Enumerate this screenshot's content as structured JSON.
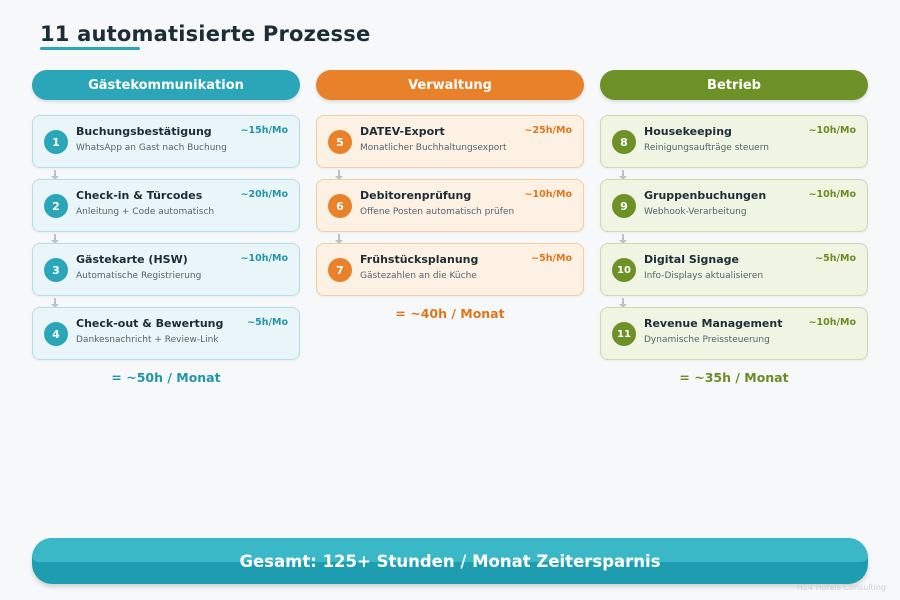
{
  "title": "11 automatisierte Prozesse",
  "colors": {
    "teal": "#2aa6b8",
    "orange": "#e8812a",
    "green": "#6e9127"
  },
  "columns": [
    {
      "header": "Gästekommunikation",
      "theme": "teal",
      "total": "= ~50h / Monat",
      "items": [
        {
          "num": "1",
          "title": "Buchungsbestätigung",
          "desc": "WhatsApp an Gast nach Buchung",
          "hours": "~15h/Mo"
        },
        {
          "num": "2",
          "title": "Check-in & Türcodes",
          "desc": "Anleitung + Code automatisch",
          "hours": "~20h/Mo"
        },
        {
          "num": "3",
          "title": "Gästekarte (HSW)",
          "desc": "Automatische Registrierung",
          "hours": "~10h/Mo"
        },
        {
          "num": "4",
          "title": "Check-out & Bewertung",
          "desc": "Dankesnachricht + Review-Link",
          "hours": "~5h/Mo"
        }
      ]
    },
    {
      "header": "Verwaltung",
      "theme": "orange",
      "total": "= ~40h / Monat",
      "items": [
        {
          "num": "5",
          "title": "DATEV-Export",
          "desc": "Monatlicher Buchhaltungsexport",
          "hours": "~25h/Mo"
        },
        {
          "num": "6",
          "title": "Debitorenprüfung",
          "desc": "Offene Posten automatisch prüfen",
          "hours": "~10h/Mo"
        },
        {
          "num": "7",
          "title": "Frühstücksplanung",
          "desc": "Gästezahlen an die Küche",
          "hours": "~5h/Mo"
        }
      ]
    },
    {
      "header": "Betrieb",
      "theme": "green",
      "total": "= ~35h / Monat",
      "items": [
        {
          "num": "8",
          "title": "Housekeeping",
          "desc": "Reinigungsaufträge steuern",
          "hours": "~10h/Mo"
        },
        {
          "num": "9",
          "title": "Gruppenbuchungen",
          "desc": "Webhook-Verarbeitung",
          "hours": "~10h/Mo"
        },
        {
          "num": "10",
          "title": "Digital Signage",
          "desc": "Info-Displays aktualisieren",
          "hours": "~5h/Mo"
        },
        {
          "num": "11",
          "title": "Revenue Management",
          "desc": "Dynamische Preissteuerung",
          "hours": "~10h/Mo"
        }
      ]
    }
  ],
  "footer": "Gesamt: 125+ Stunden / Monat Zeitersparnis",
  "watermark": "H24 Hotels Consulting"
}
